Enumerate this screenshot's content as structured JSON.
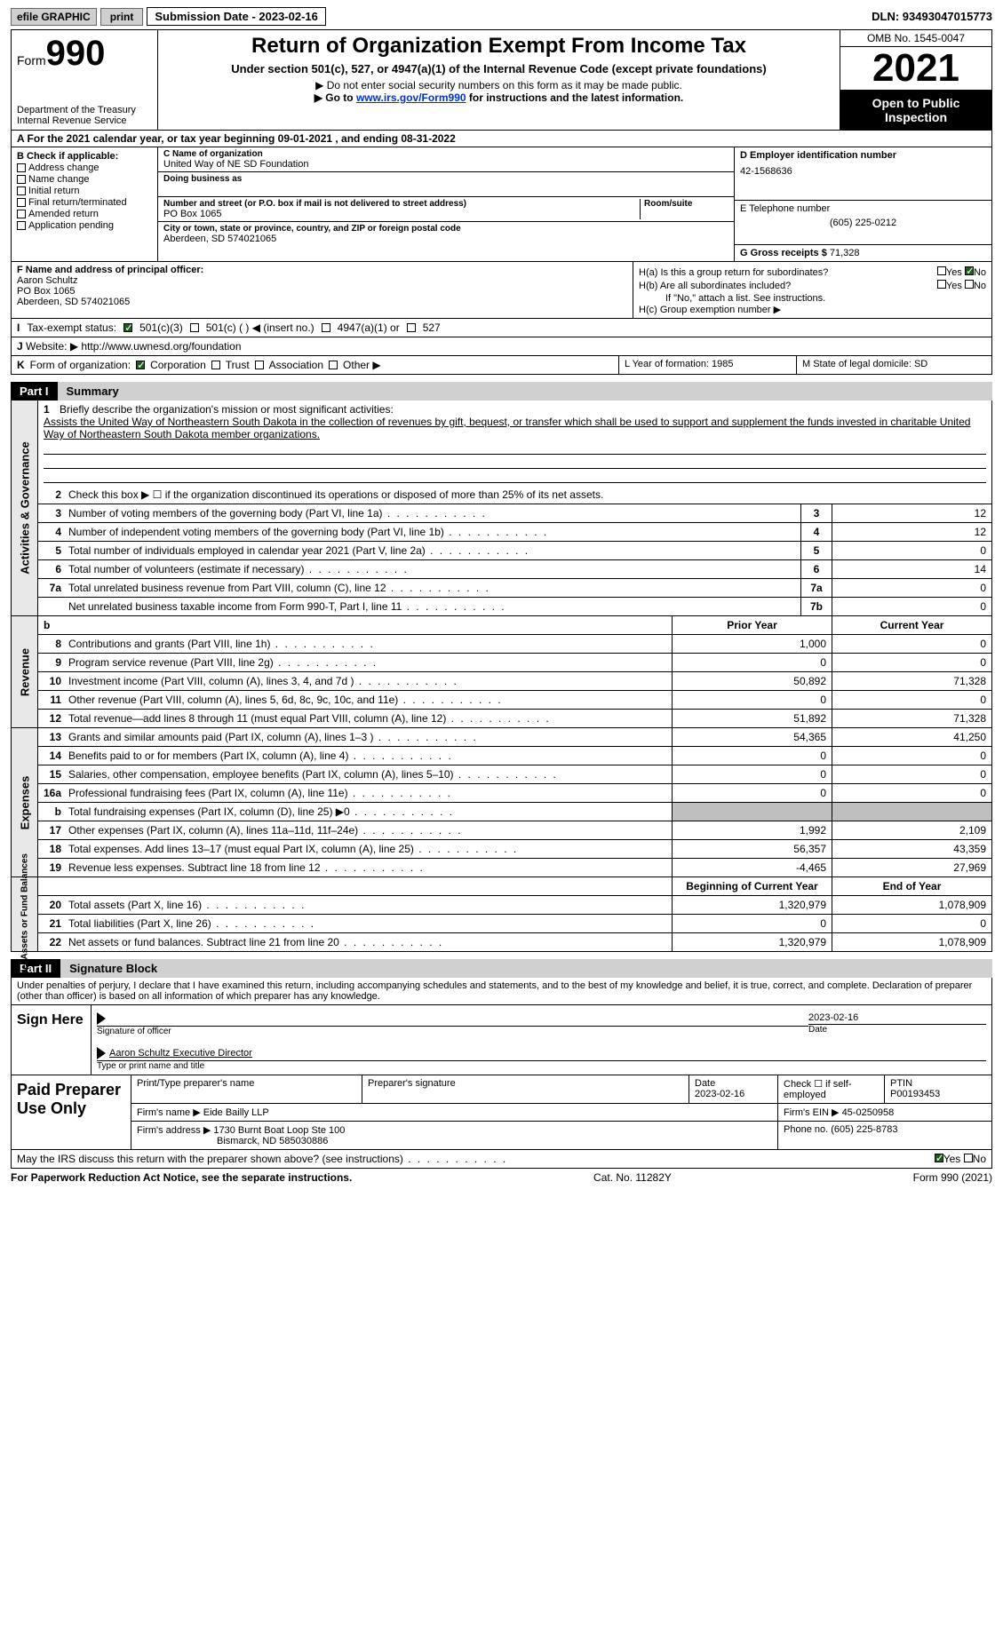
{
  "topbar": {
    "efile": "efile GRAPHIC",
    "print": "print",
    "submission": "Submission Date - 2023-02-16",
    "dln": "DLN: 93493047015773"
  },
  "header": {
    "form_prefix": "Form",
    "form_num": "990",
    "dept": "Department of the Treasury\nInternal Revenue Service",
    "title": "Return of Organization Exempt From Income Tax",
    "subtitle": "Under section 501(c), 527, or 4947(a)(1) of the Internal Revenue Code (except private foundations)",
    "note1": "▶ Do not enter social security numbers on this form as it may be made public.",
    "note2_prefix": "▶ Go to ",
    "note2_link": "www.irs.gov/Form990",
    "note2_suffix": " for instructions and the latest information.",
    "omb": "OMB No. 1545-0047",
    "year": "2021",
    "open": "Open to Public Inspection"
  },
  "row_a": "A For the 2021 calendar year, or tax year beginning 09-01-2021   , and ending 08-31-2022",
  "col_b": {
    "hdr": "B Check if applicable:",
    "items": [
      "Address change",
      "Name change",
      "Initial return",
      "Final return/terminated",
      "Amended return",
      "Application pending"
    ]
  },
  "col_c": {
    "name_lbl": "C Name of organization",
    "name": "United Way of NE SD Foundation",
    "dba_lbl": "Doing business as",
    "dba": "",
    "addr_lbl": "Number and street (or P.O. box if mail is not delivered to street address)",
    "addr": "PO Box 1065",
    "room_lbl": "Room/suite",
    "city_lbl": "City or town, state or province, country, and ZIP or foreign postal code",
    "city": "Aberdeen, SD  574021065"
  },
  "col_d": {
    "ein_lbl": "D Employer identification number",
    "ein": "42-1568636",
    "phone_lbl": "E Telephone number",
    "phone": "(605) 225-0212",
    "gross_lbl": "G Gross receipts $",
    "gross": "71,328"
  },
  "col_f": {
    "lbl": "F Name and address of principal officer:",
    "name": "Aaron Schultz",
    "addr1": "PO Box 1065",
    "addr2": "Aberdeen, SD  574021065"
  },
  "col_h": {
    "ha": "H(a)  Is this a group return for subordinates?",
    "hb": "H(b)  Are all subordinates included?",
    "hb_note": "If \"No,\" attach a list. See instructions.",
    "hc": "H(c)  Group exemption number ▶"
  },
  "row_i": {
    "lbl": "I",
    "txt": "Tax-exempt status:",
    "501c3": "501(c)(3)",
    "501c": "501(c) (  ) ◀ (insert no.)",
    "4947": "4947(a)(1) or",
    "527": "527"
  },
  "row_j": {
    "lbl": "J",
    "txt": "Website: ▶",
    "val": "http://www.uwnesd.org/foundation"
  },
  "row_k": {
    "lbl": "K",
    "txt": "Form of organization:",
    "corp": "Corporation",
    "trust": "Trust",
    "assoc": "Association",
    "other": "Other ▶",
    "l": "L Year of formation: 1985",
    "m": "M State of legal domicile: SD"
  },
  "part1": {
    "num": "Part I",
    "title": "Summary"
  },
  "mission": {
    "lbl": "1",
    "hdr": "Briefly describe the organization's mission or most significant activities:",
    "txt": "Assists the United Way of Northeastern South Dakota in the collection of revenues by gift, bequest, or transfer which shall be used to support and supplement the funds invested in charitable United Way of Northeastern South Dakota member organizations."
  },
  "line2": {
    "lbl": "2",
    "txt": "Check this box ▶ ☐  if the organization discontinued its operations or disposed of more than 25% of its net assets."
  },
  "governance_label": "Activities & Governance",
  "gov_rows": [
    {
      "n": "3",
      "d": "Number of voting members of the governing body (Part VI, line 1a)",
      "box": "3",
      "v": "12"
    },
    {
      "n": "4",
      "d": "Number of independent voting members of the governing body (Part VI, line 1b)",
      "box": "4",
      "v": "12"
    },
    {
      "n": "5",
      "d": "Total number of individuals employed in calendar year 2021 (Part V, line 2a)",
      "box": "5",
      "v": "0"
    },
    {
      "n": "6",
      "d": "Total number of volunteers (estimate if necessary)",
      "box": "6",
      "v": "14"
    },
    {
      "n": "7a",
      "d": "Total unrelated business revenue from Part VIII, column (C), line 12",
      "box": "7a",
      "v": "0"
    },
    {
      "n": "",
      "d": "Net unrelated business taxable income from Form 990-T, Part I, line 11",
      "box": "7b",
      "v": "0"
    }
  ],
  "prior_year": "Prior Year",
  "current_year": "Current Year",
  "revenue_label": "Revenue",
  "rev_rows": [
    {
      "n": "8",
      "d": "Contributions and grants (Part VIII, line 1h)",
      "p": "1,000",
      "c": "0"
    },
    {
      "n": "9",
      "d": "Program service revenue (Part VIII, line 2g)",
      "p": "0",
      "c": "0"
    },
    {
      "n": "10",
      "d": "Investment income (Part VIII, column (A), lines 3, 4, and 7d )",
      "p": "50,892",
      "c": "71,328"
    },
    {
      "n": "11",
      "d": "Other revenue (Part VIII, column (A), lines 5, 6d, 8c, 9c, 10c, and 11e)",
      "p": "0",
      "c": "0"
    },
    {
      "n": "12",
      "d": "Total revenue—add lines 8 through 11 (must equal Part VIII, column (A), line 12)",
      "p": "51,892",
      "c": "71,328"
    }
  ],
  "expenses_label": "Expenses",
  "exp_rows": [
    {
      "n": "13",
      "d": "Grants and similar amounts paid (Part IX, column (A), lines 1–3 )",
      "p": "54,365",
      "c": "41,250"
    },
    {
      "n": "14",
      "d": "Benefits paid to or for members (Part IX, column (A), line 4)",
      "p": "0",
      "c": "0"
    },
    {
      "n": "15",
      "d": "Salaries, other compensation, employee benefits (Part IX, column (A), lines 5–10)",
      "p": "0",
      "c": "0"
    },
    {
      "n": "16a",
      "d": "Professional fundraising fees (Part IX, column (A), line 11e)",
      "p": "0",
      "c": "0"
    },
    {
      "n": "b",
      "d": "Total fundraising expenses (Part IX, column (D), line 25) ▶0",
      "p": "",
      "c": "",
      "shade": true
    },
    {
      "n": "17",
      "d": "Other expenses (Part IX, column (A), lines 11a–11d, 11f–24e)",
      "p": "1,992",
      "c": "2,109"
    },
    {
      "n": "18",
      "d": "Total expenses. Add lines 13–17 (must equal Part IX, column (A), line 25)",
      "p": "56,357",
      "c": "43,359"
    },
    {
      "n": "19",
      "d": "Revenue less expenses. Subtract line 18 from line 12",
      "p": "-4,465",
      "c": "27,969"
    }
  ],
  "net_label": "Net Assets or\nFund Balances",
  "begin_year": "Beginning of Current Year",
  "end_year": "End of Year",
  "net_rows": [
    {
      "n": "20",
      "d": "Total assets (Part X, line 16)",
      "p": "1,320,979",
      "c": "1,078,909"
    },
    {
      "n": "21",
      "d": "Total liabilities (Part X, line 26)",
      "p": "0",
      "c": "0"
    },
    {
      "n": "22",
      "d": "Net assets or fund balances. Subtract line 21 from line 20",
      "p": "1,320,979",
      "c": "1,078,909"
    }
  ],
  "part2": {
    "num": "Part II",
    "title": "Signature Block"
  },
  "sig": {
    "intro": "Under penalties of perjury, I declare that I have examined this return, including accompanying schedules and statements, and to the best of my knowledge and belief, it is true, correct, and complete. Declaration of preparer (other than officer) is based on all information of which preparer has any knowledge.",
    "sign_here": "Sign Here",
    "sig_officer": "Signature of officer",
    "date": "Date",
    "date_val": "2023-02-16",
    "name": "Aaron Schultz  Executive Director",
    "name_lbl": "Type or print name and title"
  },
  "paid": {
    "left": "Paid Preparer Use Only",
    "h1": "Print/Type preparer's name",
    "h2": "Preparer's signature",
    "h3": "Date",
    "h3v": "2023-02-16",
    "h4": "Check ☐ if self-employed",
    "h5": "PTIN",
    "h5v": "P00193453",
    "firm_lbl": "Firm's name    ▶",
    "firm": "Eide Bailly LLP",
    "ein_lbl": "Firm's EIN ▶",
    "ein": "45-0250958",
    "addr_lbl": "Firm's address ▶",
    "addr1": "1730 Burnt Boat Loop Ste 100",
    "addr2": "Bismarck, ND  585030886",
    "phone_lbl": "Phone no.",
    "phone": "(605) 225-8783"
  },
  "discuss": "May the IRS discuss this return with the preparer shown above? (see instructions)",
  "footer": {
    "l": "For Paperwork Reduction Act Notice, see the separate instructions.",
    "m": "Cat. No. 11282Y",
    "r": "Form 990 (2021)"
  }
}
